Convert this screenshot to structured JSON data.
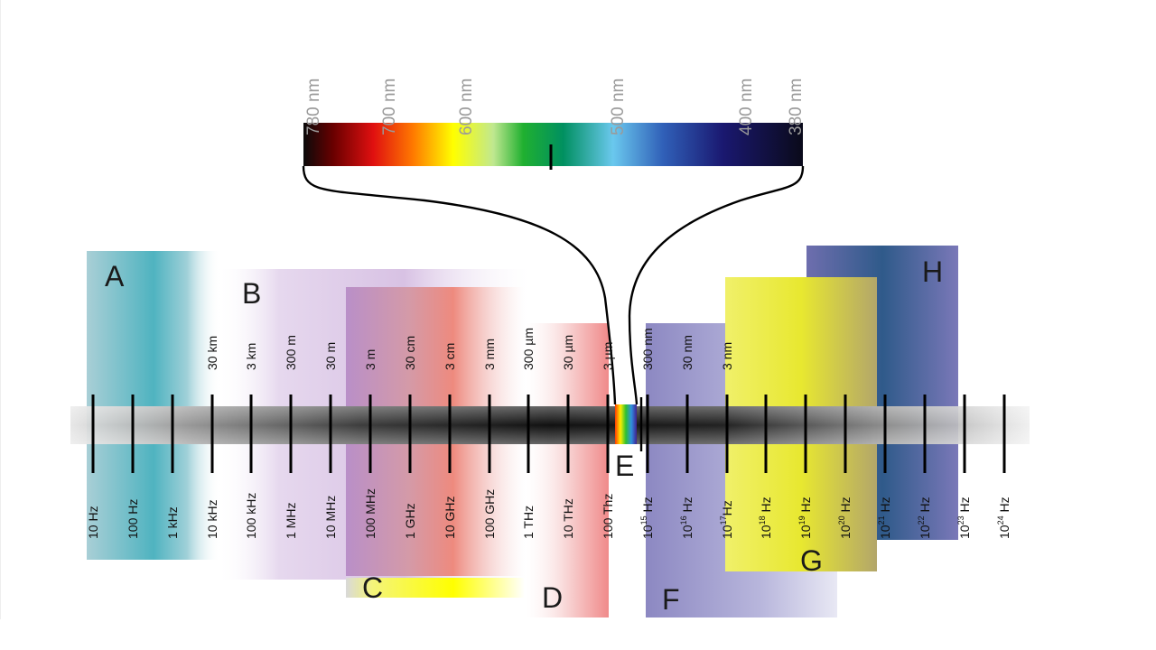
{
  "colors": {
    "region_a": "#5fb6c2",
    "region_b": "#c7a9d6",
    "region_c_band": "#ffff00",
    "region_d": "#f08a8a",
    "region_f": "#8f8bc4",
    "region_g": "#e2e23a",
    "region_h": "#3f5ea0"
  },
  "regions": [
    {
      "id": "a",
      "letter": "A"
    },
    {
      "id": "b",
      "letter": "B"
    },
    {
      "id": "c",
      "letter": "C"
    },
    {
      "id": "d",
      "letter": "D"
    },
    {
      "id": "e",
      "letter": "E"
    },
    {
      "id": "f",
      "letter": "F"
    },
    {
      "id": "g",
      "letter": "G"
    },
    {
      "id": "h",
      "letter": "H"
    }
  ],
  "wavelength_labels": [
    "30 km",
    "3 km",
    "300 m",
    "30 m",
    "3 m",
    "30 cm",
    "3 cm",
    "3  mm",
    "300  µm",
    "30  µm",
    "3  µm",
    "300 nm",
    "30 nm",
    "3 nm"
  ],
  "frequency_labels": [
    {
      "base": "10 Hz"
    },
    {
      "base": "100 Hz"
    },
    {
      "base": "1 kHz"
    },
    {
      "base": "10 kHz"
    },
    {
      "base": "100 kHz"
    },
    {
      "base": "1 MHz"
    },
    {
      "base": "10 MHz"
    },
    {
      "base": "100 MHz"
    },
    {
      "base": "1 GHz"
    },
    {
      "base": "10 GHz"
    },
    {
      "base": "100 GHz"
    },
    {
      "base": "1 THz"
    },
    {
      "base": "10 THz"
    },
    {
      "base": "100 Thz"
    },
    {
      "base": "10",
      "exp": "15",
      "unit": " Hz"
    },
    {
      "base": "10",
      "exp": "16",
      "unit": " Hz"
    },
    {
      "base": "10",
      "exp": "17",
      "unit": "Hz"
    },
    {
      "base": "10",
      "exp": "18",
      "unit": " Hz"
    },
    {
      "base": "10",
      "exp": "19",
      "unit": " Hz"
    },
    {
      "base": "10",
      "exp": "20",
      "unit": " Hz"
    },
    {
      "base": "10",
      "exp": "21",
      "unit": " Hz"
    },
    {
      "base": "10",
      "exp": "22",
      "unit": " Hz"
    },
    {
      "base": "10",
      "exp": "23",
      "unit": " Hz"
    },
    {
      "base": "10",
      "exp": "24",
      "unit": " Hz"
    }
  ],
  "visible_spectrum_labels": [
    "780 nm",
    "700 nm",
    "600 nm",
    "500 nm",
    "400 nm",
    "380 nm"
  ]
}
